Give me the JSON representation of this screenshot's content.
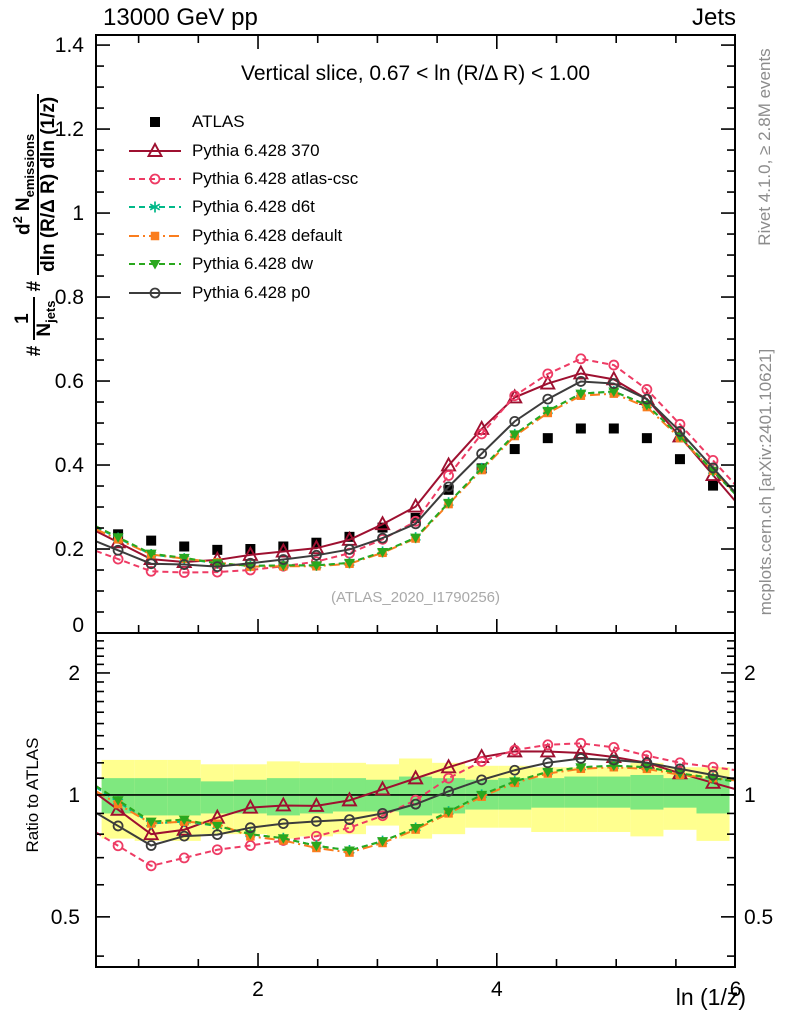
{
  "header": {
    "left": "13000 GeV pp",
    "right": "Jets"
  },
  "side_notes": {
    "right_top": "Rivet 4.1.0, ≥ 2.8M events",
    "right_bottom": "mcplots.cern.ch [arXiv:2401.10621]"
  },
  "main_panel": {
    "title": "Vertical slice, 0.67 < ln (R/Δ R) < 1.00",
    "watermark": "(ATLAS_2020_I1790256)"
  },
  "ratio_panel": {
    "ylabel": "Ratio to ATLAS"
  },
  "x_axis": {
    "label": "ln (1/z)"
  },
  "y_axis": {
    "hash": "#",
    "frac1_num": "1",
    "frac1_den_main": "N",
    "frac1_den_sub": "jets",
    "frac2_num_d": "d",
    "frac2_num_sup": "2",
    "frac2_num_main": "N",
    "frac2_num_sub": "emissions",
    "frac2_den": "dln (R/Δ R) dln (1/z)"
  },
  "chart_data": {
    "type": "line",
    "title": "Vertical slice, 0.67 < ln (R/Δ R) < 1.00",
    "xlabel": "ln (1/z)",
    "ylabel": "#1/N_jets # d^2 N_emissions / dln (R/Δ R) dln (1/z)",
    "xlim": [
      0.643,
      5.995
    ],
    "bin_start": 0.69,
    "bin_width": 0.2768,
    "x": [
      0.828,
      1.105,
      1.382,
      1.659,
      1.936,
      2.212,
      2.489,
      2.766,
      3.043,
      3.32,
      3.596,
      3.873,
      4.15,
      4.427,
      4.704,
      4.98,
      5.257,
      5.534,
      5.811
    ],
    "x_major_ticks": [
      2,
      4,
      6
    ],
    "x_major_labels": [
      "2",
      "4",
      "6"
    ],
    "x_minor_step": 0.5,
    "main": {
      "ylim": [
        0,
        1.424
      ],
      "yticks": [
        0,
        0.2,
        0.4,
        0.6,
        0.8,
        1.0,
        1.2,
        1.4
      ],
      "ytick_labels": [
        "0",
        "0.2",
        "0.4",
        "0.6",
        "0.8",
        "1",
        "1.2",
        "1.4"
      ],
      "y_minor_step": 0.05,
      "grid": false
    },
    "ratio": {
      "yscale": "log",
      "ylim": [
        0.376,
        2.51
      ],
      "yticks": [
        0.5,
        1,
        2
      ],
      "ytick_labels": [
        "0.5",
        "1",
        "2"
      ],
      "y_minor_ticks": [
        0.4,
        0.6,
        0.7,
        0.8,
        0.9,
        1.1,
        1.2,
        1.3,
        1.4,
        1.5,
        1.6,
        1.7,
        1.8,
        1.9,
        2.1,
        2.2,
        2.3,
        2.4
      ],
      "reference_line": 1,
      "band_colors": {
        "yellow": "#ffff8f",
        "green": "#7fe87f"
      },
      "bands": {
        "yellow_hi": [
          1.22,
          1.22,
          1.22,
          1.19,
          1.19,
          1.21,
          1.2,
          1.2,
          1.19,
          1.23,
          1.2,
          1.18,
          1.18,
          1.17,
          1.17,
          1.17,
          1.2,
          1.17,
          1.17
        ],
        "green_hi": [
          1.1,
          1.1,
          1.1,
          1.08,
          1.09,
          1.1,
          1.1,
          1.1,
          1.09,
          1.11,
          1.1,
          1.09,
          1.1,
          1.1,
          1.11,
          1.11,
          1.12,
          1.1,
          1.1
        ],
        "green_lo": [
          0.9,
          0.89,
          0.89,
          0.9,
          0.9,
          0.89,
          0.9,
          0.91,
          0.91,
          0.89,
          0.9,
          0.92,
          0.92,
          0.93,
          0.93,
          0.93,
          0.92,
          0.93,
          0.9
        ],
        "yellow_lo": [
          0.78,
          0.77,
          0.77,
          0.8,
          0.8,
          0.78,
          0.79,
          0.8,
          0.84,
          0.78,
          0.8,
          0.83,
          0.83,
          0.81,
          0.81,
          0.81,
          0.79,
          0.82,
          0.77
        ]
      }
    },
    "series": [
      {
        "name": "ATLAS",
        "color": "#000000",
        "marker": "square-filled",
        "marker_size": 10,
        "line": "none",
        "values": [
          0.235,
          0.22,
          0.206,
          0.198,
          0.2,
          0.206,
          0.215,
          0.229,
          0.251,
          0.274,
          0.341,
          0.392,
          0.438,
          0.464,
          0.487,
          0.487,
          0.464,
          0.414,
          0.351
        ]
      },
      {
        "name": "Pythia 6.428 370",
        "color": "#9e1030",
        "marker": "triangle-up-open",
        "marker_size": 13,
        "line": "solid",
        "values": [
          0.216,
          0.176,
          0.169,
          0.174,
          0.186,
          0.194,
          0.202,
          0.222,
          0.259,
          0.301,
          0.399,
          0.486,
          0.561,
          0.594,
          0.618,
          0.604,
          0.557,
          0.468,
          0.376
        ]
      },
      {
        "name": "Pythia 6.428 atlas-csc",
        "color": "#ee3b64",
        "marker": "circle-open",
        "marker_size": 9,
        "line": "dashed",
        "values": [
          0.176,
          0.147,
          0.144,
          0.145,
          0.15,
          0.159,
          0.17,
          0.19,
          0.223,
          0.266,
          0.375,
          0.474,
          0.565,
          0.617,
          0.653,
          0.638,
          0.58,
          0.497,
          0.411
        ]
      },
      {
        "name": "Pythia 6.428 d6t",
        "color": "#00b888",
        "marker": "asterisk",
        "marker_size": 11,
        "line": "dashed",
        "values": [
          0.226,
          0.187,
          0.177,
          0.166,
          0.16,
          0.161,
          0.161,
          0.167,
          0.193,
          0.227,
          0.31,
          0.392,
          0.473,
          0.529,
          0.57,
          0.575,
          0.543,
          0.468,
          0.386
        ]
      },
      {
        "name": "Pythia 6.428 default",
        "color": "#fa7d1e",
        "marker": "square-filled",
        "marker_size": 8.5,
        "line": "dashdot",
        "values": [
          0.223,
          0.187,
          0.177,
          0.168,
          0.158,
          0.159,
          0.159,
          0.165,
          0.191,
          0.225,
          0.307,
          0.388,
          0.469,
          0.524,
          0.565,
          0.57,
          0.538,
          0.464,
          0.386
        ]
      },
      {
        "name": "Pythia 6.428 dw",
        "color": "#2aa81e",
        "marker": "triangle-down-filled",
        "marker_size": 11,
        "line": "dashed",
        "values": [
          0.228,
          0.189,
          0.179,
          0.166,
          0.16,
          0.161,
          0.161,
          0.167,
          0.193,
          0.227,
          0.31,
          0.392,
          0.473,
          0.529,
          0.57,
          0.575,
          0.543,
          0.468,
          0.386
        ]
      },
      {
        "name": "Pythia 6.428 p0",
        "color": "#3c3c3c",
        "marker": "circle-open",
        "marker_size": 9,
        "line": "solid",
        "values": [
          0.197,
          0.165,
          0.163,
          0.158,
          0.166,
          0.175,
          0.185,
          0.199,
          0.226,
          0.26,
          0.348,
          0.427,
          0.504,
          0.557,
          0.599,
          0.594,
          0.557,
          0.48,
          0.393
        ]
      }
    ]
  }
}
